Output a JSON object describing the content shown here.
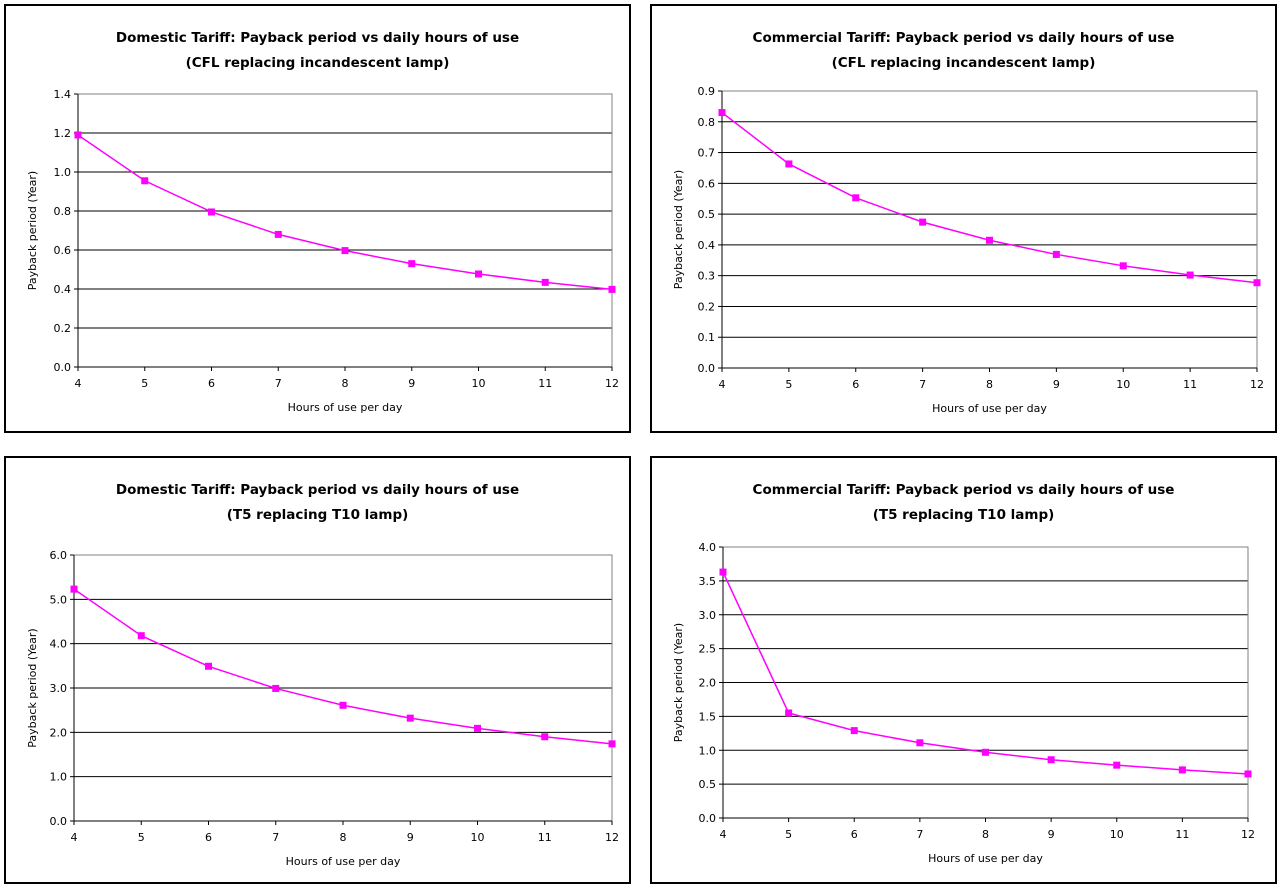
{
  "colors": {
    "series": "#ff00ff",
    "grid": "#000000"
  },
  "chart_data": [
    {
      "type": "line",
      "title": "Domestic Tariff: Payback period vs daily hours of use",
      "subtitle": "(CFL replacing incandescent lamp)",
      "xlabel": "Hours of use per day",
      "ylabel": "Payback period (Year)",
      "x": [
        4,
        5,
        6,
        7,
        8,
        9,
        10,
        11,
        12
      ],
      "values": [
        1.19,
        0.955,
        0.795,
        0.68,
        0.597,
        0.53,
        0.477,
        0.434,
        0.398
      ],
      "xlim": [
        4,
        12
      ],
      "ylim": [
        0,
        1.4
      ],
      "yticks": [
        "0.0",
        "0.2",
        "0.4",
        "0.6",
        "0.8",
        "1.0",
        "1.2",
        "1.4"
      ],
      "xticks": [
        "4",
        "5",
        "6",
        "7",
        "8",
        "9",
        "10",
        "11",
        "12"
      ],
      "grid": true,
      "legend": "none"
    },
    {
      "type": "line",
      "title": "Commercial Tariff: Payback period vs daily hours of use",
      "subtitle": "(CFL replacing incandescent lamp)",
      "xlabel": "Hours of use per day",
      "ylabel": "Payback period (Year)",
      "x": [
        4,
        5,
        6,
        7,
        8,
        9,
        10,
        11,
        12
      ],
      "values": [
        0.83,
        0.663,
        0.553,
        0.474,
        0.415,
        0.369,
        0.332,
        0.302,
        0.277
      ],
      "xlim": [
        4,
        12
      ],
      "ylim": [
        0,
        0.9
      ],
      "yticks": [
        "0.0",
        "0.1",
        "0.2",
        "0.3",
        "0.4",
        "0.5",
        "0.6",
        "0.7",
        "0.8",
        "0.9"
      ],
      "xticks": [
        "4",
        "5",
        "6",
        "7",
        "8",
        "9",
        "10",
        "11",
        "12"
      ],
      "grid": true,
      "legend": "none"
    },
    {
      "type": "line",
      "title": "Domestic Tariff: Payback period vs daily hours of use",
      "subtitle": "(T5 replacing T10 lamp)",
      "xlabel": "Hours of use per day",
      "ylabel": "Payback period (Year)",
      "x": [
        4,
        5,
        6,
        7,
        8,
        9,
        10,
        11,
        12
      ],
      "values": [
        5.23,
        4.18,
        3.49,
        2.99,
        2.61,
        2.32,
        2.09,
        1.9,
        1.74
      ],
      "xlim": [
        4,
        12
      ],
      "ylim": [
        0,
        6
      ],
      "yticks": [
        "0.0",
        "1.0",
        "2.0",
        "3.0",
        "4.0",
        "5.0",
        "6.0"
      ],
      "xticks": [
        "4",
        "5",
        "6",
        "7",
        "8",
        "9",
        "10",
        "11",
        "12"
      ],
      "grid": true,
      "legend": "none"
    },
    {
      "type": "line",
      "title": "Commercial Tariff: Payback period vs daily hours of use",
      "subtitle": "(T5 replacing T10 lamp)",
      "xlabel": "Hours of use per day",
      "ylabel": "Payback period (Year)",
      "x": [
        4,
        5,
        6,
        7,
        8,
        9,
        10,
        11,
        12
      ],
      "values": [
        3.63,
        1.55,
        1.29,
        1.11,
        0.97,
        0.86,
        0.78,
        0.71,
        0.65
      ],
      "xlim": [
        4,
        12
      ],
      "ylim": [
        0,
        4
      ],
      "yticks": [
        "0.0",
        "0.5",
        "1.0",
        "1.5",
        "2.0",
        "2.5",
        "3.0",
        "3.5",
        "4.0"
      ],
      "xticks": [
        "4",
        "5",
        "6",
        "7",
        "8",
        "9",
        "10",
        "11",
        "12"
      ],
      "grid": true,
      "legend": "none"
    }
  ]
}
